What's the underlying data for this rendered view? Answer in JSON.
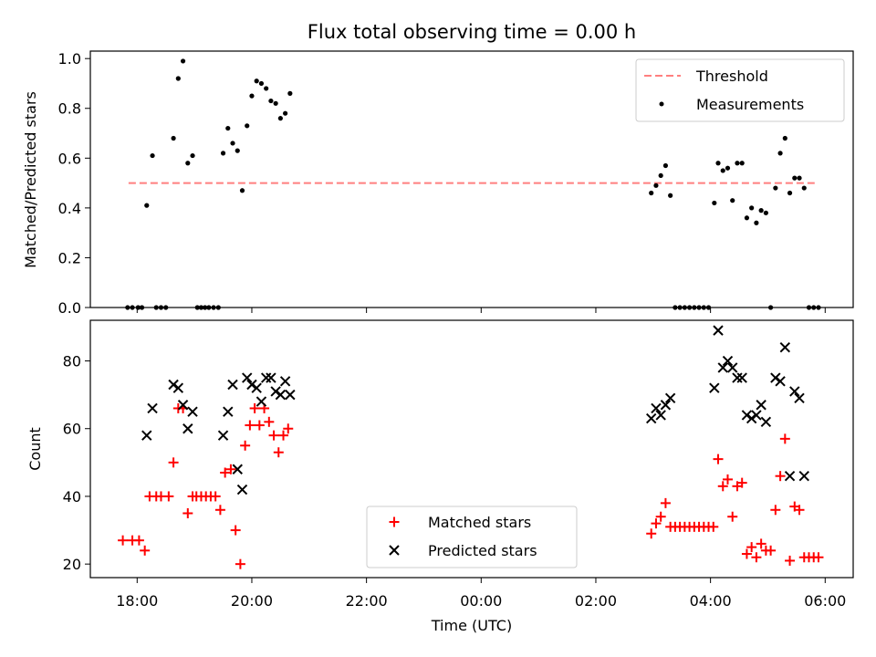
{
  "chart_data": {
    "title": "Flux total observing time = 0.00 h",
    "xlabel": "Time (UTC)",
    "x_ticks": [
      "18:00",
      "20:00",
      "22:00",
      "00:00",
      "02:00",
      "04:00",
      "06:00"
    ],
    "panels": [
      {
        "type": "scatter",
        "ylabel": "Matched/Predicted stars",
        "ylim": [
          0,
          1.03
        ],
        "yticks": [
          "0.0",
          "0.2",
          "0.4",
          "0.6",
          "0.8",
          "1.0"
        ],
        "legend_position": "top-right",
        "threshold": {
          "name": "Threshold",
          "value": 0.5,
          "x_start": "17:51",
          "x_end": "05:49",
          "color": "#ff7f7f"
        },
        "measurements": {
          "name": "Measurements",
          "color": "#000000",
          "points": [
            [
              "17:50",
              0
            ],
            [
              "17:55",
              0
            ],
            [
              "18:01",
              0
            ],
            [
              "18:05",
              0
            ],
            [
              "18:10",
              0.41
            ],
            [
              "18:16",
              0.61
            ],
            [
              "18:20",
              0
            ],
            [
              "18:25",
              0
            ],
            [
              "18:30",
              0
            ],
            [
              "18:38",
              0.68
            ],
            [
              "18:43",
              0.92
            ],
            [
              "18:48",
              0.99
            ],
            [
              "18:53",
              0.58
            ],
            [
              "18:58",
              0.61
            ],
            [
              "19:03",
              0
            ],
            [
              "19:07",
              0
            ],
            [
              "19:11",
              0
            ],
            [
              "19:15",
              0
            ],
            [
              "19:20",
              0
            ],
            [
              "19:25",
              0
            ],
            [
              "19:30",
              0.62
            ],
            [
              "19:35",
              0.72
            ],
            [
              "19:40",
              0.66
            ],
            [
              "19:45",
              0.63
            ],
            [
              "19:50",
              0.47
            ],
            [
              "19:55",
              0.73
            ],
            [
              "20:00",
              0.85
            ],
            [
              "20:05",
              0.91
            ],
            [
              "20:10",
              0.9
            ],
            [
              "20:15",
              0.88
            ],
            [
              "20:20",
              0.83
            ],
            [
              "20:25",
              0.82
            ],
            [
              "20:30",
              0.76
            ],
            [
              "20:35",
              0.78
            ],
            [
              "20:40",
              0.86
            ],
            [
              "02:58",
              0.46
            ],
            [
              "03:03",
              0.49
            ],
            [
              "03:08",
              0.53
            ],
            [
              "03:13",
              0.57
            ],
            [
              "03:18",
              0.45
            ],
            [
              "03:23",
              0
            ],
            [
              "03:28",
              0
            ],
            [
              "03:33",
              0
            ],
            [
              "03:38",
              0
            ],
            [
              "03:43",
              0
            ],
            [
              "03:48",
              0
            ],
            [
              "03:53",
              0
            ],
            [
              "03:58",
              0
            ],
            [
              "04:04",
              0.42
            ],
            [
              "04:08",
              0.58
            ],
            [
              "04:13",
              0.55
            ],
            [
              "04:18",
              0.56
            ],
            [
              "04:23",
              0.43
            ],
            [
              "04:28",
              0.58
            ],
            [
              "04:33",
              0.58
            ],
            [
              "04:38",
              0.36
            ],
            [
              "04:43",
              0.4
            ],
            [
              "04:48",
              0.34
            ],
            [
              "04:53",
              0.39
            ],
            [
              "04:58",
              0.38
            ],
            [
              "05:03",
              0
            ],
            [
              "05:08",
              0.48
            ],
            [
              "05:13",
              0.62
            ],
            [
              "05:18",
              0.68
            ],
            [
              "05:23",
              0.46
            ],
            [
              "05:28",
              0.52
            ],
            [
              "05:33",
              0.52
            ],
            [
              "05:38",
              0.48
            ],
            [
              "05:43",
              0
            ],
            [
              "05:48",
              0
            ],
            [
              "05:53",
              0
            ]
          ]
        }
      },
      {
        "type": "scatter",
        "ylabel": "Count",
        "ylim": [
          16,
          92
        ],
        "yticks": [
          "20",
          "40",
          "60",
          "80"
        ],
        "legend_position": "bottom-center",
        "series": [
          {
            "name": "Matched stars",
            "marker": "plus",
            "color": "#ff0000",
            "points": [
              [
                "17:45",
                27
              ],
              [
                "17:55",
                27
              ],
              [
                "18:02",
                27
              ],
              [
                "18:08",
                24
              ],
              [
                "18:13",
                40
              ],
              [
                "18:20",
                40
              ],
              [
                "18:25",
                40
              ],
              [
                "18:33",
                40
              ],
              [
                "18:38",
                50
              ],
              [
                "18:43",
                66
              ],
              [
                "18:48",
                66
              ],
              [
                "18:53",
                35
              ],
              [
                "18:58",
                40
              ],
              [
                "19:02",
                40
              ],
              [
                "19:07",
                40
              ],
              [
                "19:12",
                40
              ],
              [
                "19:17",
                40
              ],
              [
                "19:22",
                40
              ],
              [
                "19:27",
                36
              ],
              [
                "19:32",
                47
              ],
              [
                "19:38",
                48
              ],
              [
                "19:43",
                30
              ],
              [
                "19:48",
                20
              ],
              [
                "19:53",
                55
              ],
              [
                "19:58",
                61
              ],
              [
                "20:03",
                66
              ],
              [
                "20:08",
                61
              ],
              [
                "20:13",
                66
              ],
              [
                "20:18",
                62
              ],
              [
                "20:23",
                58
              ],
              [
                "20:28",
                53
              ],
              [
                "20:33",
                58
              ],
              [
                "20:38",
                60
              ],
              [
                "02:58",
                29
              ],
              [
                "03:03",
                32
              ],
              [
                "03:08",
                34
              ],
              [
                "03:13",
                38
              ],
              [
                "03:18",
                31
              ],
              [
                "03:23",
                31
              ],
              [
                "03:28",
                31
              ],
              [
                "03:33",
                31
              ],
              [
                "03:38",
                31
              ],
              [
                "03:43",
                31
              ],
              [
                "03:48",
                31
              ],
              [
                "03:53",
                31
              ],
              [
                "03:58",
                31
              ],
              [
                "04:03",
                31
              ],
              [
                "04:08",
                51
              ],
              [
                "04:13",
                43
              ],
              [
                "04:18",
                45
              ],
              [
                "04:23",
                34
              ],
              [
                "04:28",
                43
              ],
              [
                "04:33",
                44
              ],
              [
                "04:38",
                23
              ],
              [
                "04:43",
                25
              ],
              [
                "04:48",
                22
              ],
              [
                "04:53",
                26
              ],
              [
                "04:58",
                24
              ],
              [
                "05:03",
                24
              ],
              [
                "05:08",
                36
              ],
              [
                "05:13",
                46
              ],
              [
                "05:18",
                57
              ],
              [
                "05:23",
                21
              ],
              [
                "05:28",
                37
              ],
              [
                "05:33",
                36
              ],
              [
                "05:38",
                22
              ],
              [
                "05:43",
                22
              ],
              [
                "05:48",
                22
              ],
              [
                "05:53",
                22
              ]
            ]
          },
          {
            "name": "Predicted stars",
            "marker": "x",
            "color": "#000000",
            "points": [
              [
                "18:10",
                58
              ],
              [
                "18:16",
                66
              ],
              [
                "18:38",
                73
              ],
              [
                "18:43",
                72
              ],
              [
                "18:48",
                67
              ],
              [
                "18:53",
                60
              ],
              [
                "18:58",
                65
              ],
              [
                "19:30",
                58
              ],
              [
                "19:35",
                65
              ],
              [
                "19:40",
                73
              ],
              [
                "19:45",
                48
              ],
              [
                "19:50",
                42
              ],
              [
                "19:55",
                75
              ],
              [
                "20:00",
                73
              ],
              [
                "20:05",
                72
              ],
              [
                "20:10",
                68
              ],
              [
                "20:15",
                75
              ],
              [
                "20:20",
                75
              ],
              [
                "20:25",
                71
              ],
              [
                "20:30",
                70
              ],
              [
                "20:35",
                74
              ],
              [
                "20:40",
                70
              ],
              [
                "02:58",
                63
              ],
              [
                "03:03",
                66
              ],
              [
                "03:08",
                64
              ],
              [
                "03:13",
                67
              ],
              [
                "03:18",
                69
              ],
              [
                "04:04",
                72
              ],
              [
                "04:08",
                89
              ],
              [
                "04:13",
                78
              ],
              [
                "04:18",
                80
              ],
              [
                "04:23",
                78
              ],
              [
                "04:28",
                75
              ],
              [
                "04:33",
                75
              ],
              [
                "04:38",
                64
              ],
              [
                "04:43",
                63
              ],
              [
                "04:48",
                64
              ],
              [
                "04:53",
                67
              ],
              [
                "04:58",
                62
              ],
              [
                "05:08",
                75
              ],
              [
                "05:13",
                74
              ],
              [
                "05:18",
                84
              ],
              [
                "05:23",
                46
              ],
              [
                "05:28",
                71
              ],
              [
                "05:33",
                69
              ],
              [
                "05:38",
                46
              ]
            ]
          }
        ]
      }
    ]
  }
}
